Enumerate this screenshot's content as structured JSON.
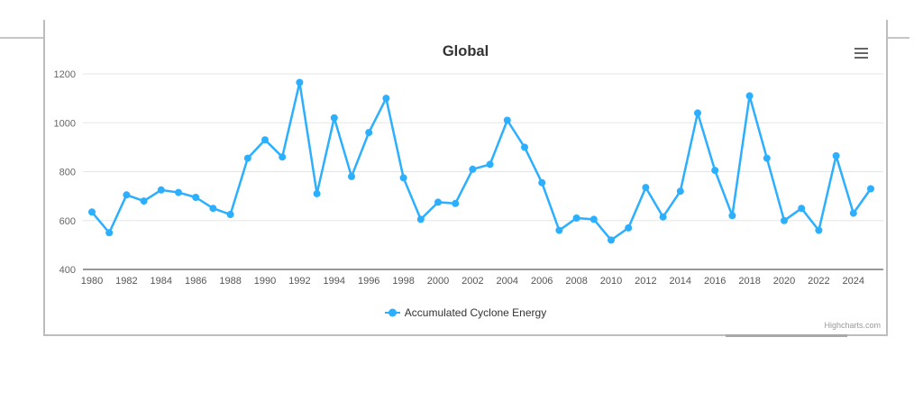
{
  "page": {
    "title": "Global",
    "credits_label": "Highcharts.com"
  },
  "menu": {
    "icon": "hamburger-menu-icon"
  },
  "legend": {
    "items": [
      {
        "label": "Accumulated Cyclone Energy",
        "color": "#2CAFFE"
      }
    ]
  },
  "colors": {
    "accent": "#2CAFFE",
    "grid": "#e6e6e6",
    "axis_line": "#999999",
    "y_label": "#666666",
    "x_label": "#555555",
    "title": "#333333"
  },
  "chart_data": {
    "type": "line",
    "title": "Global",
    "xlabel": "",
    "ylabel": "",
    "grid": true,
    "legend_position": "bottom",
    "ylim": [
      400,
      1250
    ],
    "y_ticks": [
      400,
      600,
      800,
      1000,
      1200
    ],
    "x_tick_labels": [
      1980,
      1982,
      1984,
      1986,
      1988,
      1990,
      1992,
      1994,
      1996,
      1998,
      2000,
      2002,
      2004,
      2006,
      2008,
      2010,
      2012,
      2014,
      2016,
      2018,
      2020,
      2022,
      2024
    ],
    "x": [
      1980,
      1981,
      1982,
      1983,
      1984,
      1985,
      1986,
      1987,
      1988,
      1989,
      1990,
      1991,
      1992,
      1993,
      1994,
      1995,
      1996,
      1997,
      1998,
      1999,
      2000,
      2001,
      2002,
      2003,
      2004,
      2005,
      2006,
      2007,
      2008,
      2009,
      2010,
      2011,
      2012,
      2013,
      2014,
      2015,
      2016,
      2017,
      2018,
      2019,
      2020,
      2021,
      2022,
      2023,
      2024,
      2025
    ],
    "series": [
      {
        "name": "Accumulated Cyclone Energy",
        "color": "#2CAFFE",
        "values": [
          635,
          550,
          705,
          680,
          725,
          715,
          695,
          650,
          625,
          855,
          930,
          860,
          1165,
          710,
          1020,
          780,
          960,
          1100,
          775,
          605,
          675,
          670,
          810,
          830,
          1010,
          900,
          755,
          560,
          610,
          605,
          520,
          570,
          735,
          615,
          720,
          1040,
          805,
          620,
          1110,
          855,
          600,
          650,
          560,
          865,
          630,
          730
        ]
      }
    ]
  }
}
